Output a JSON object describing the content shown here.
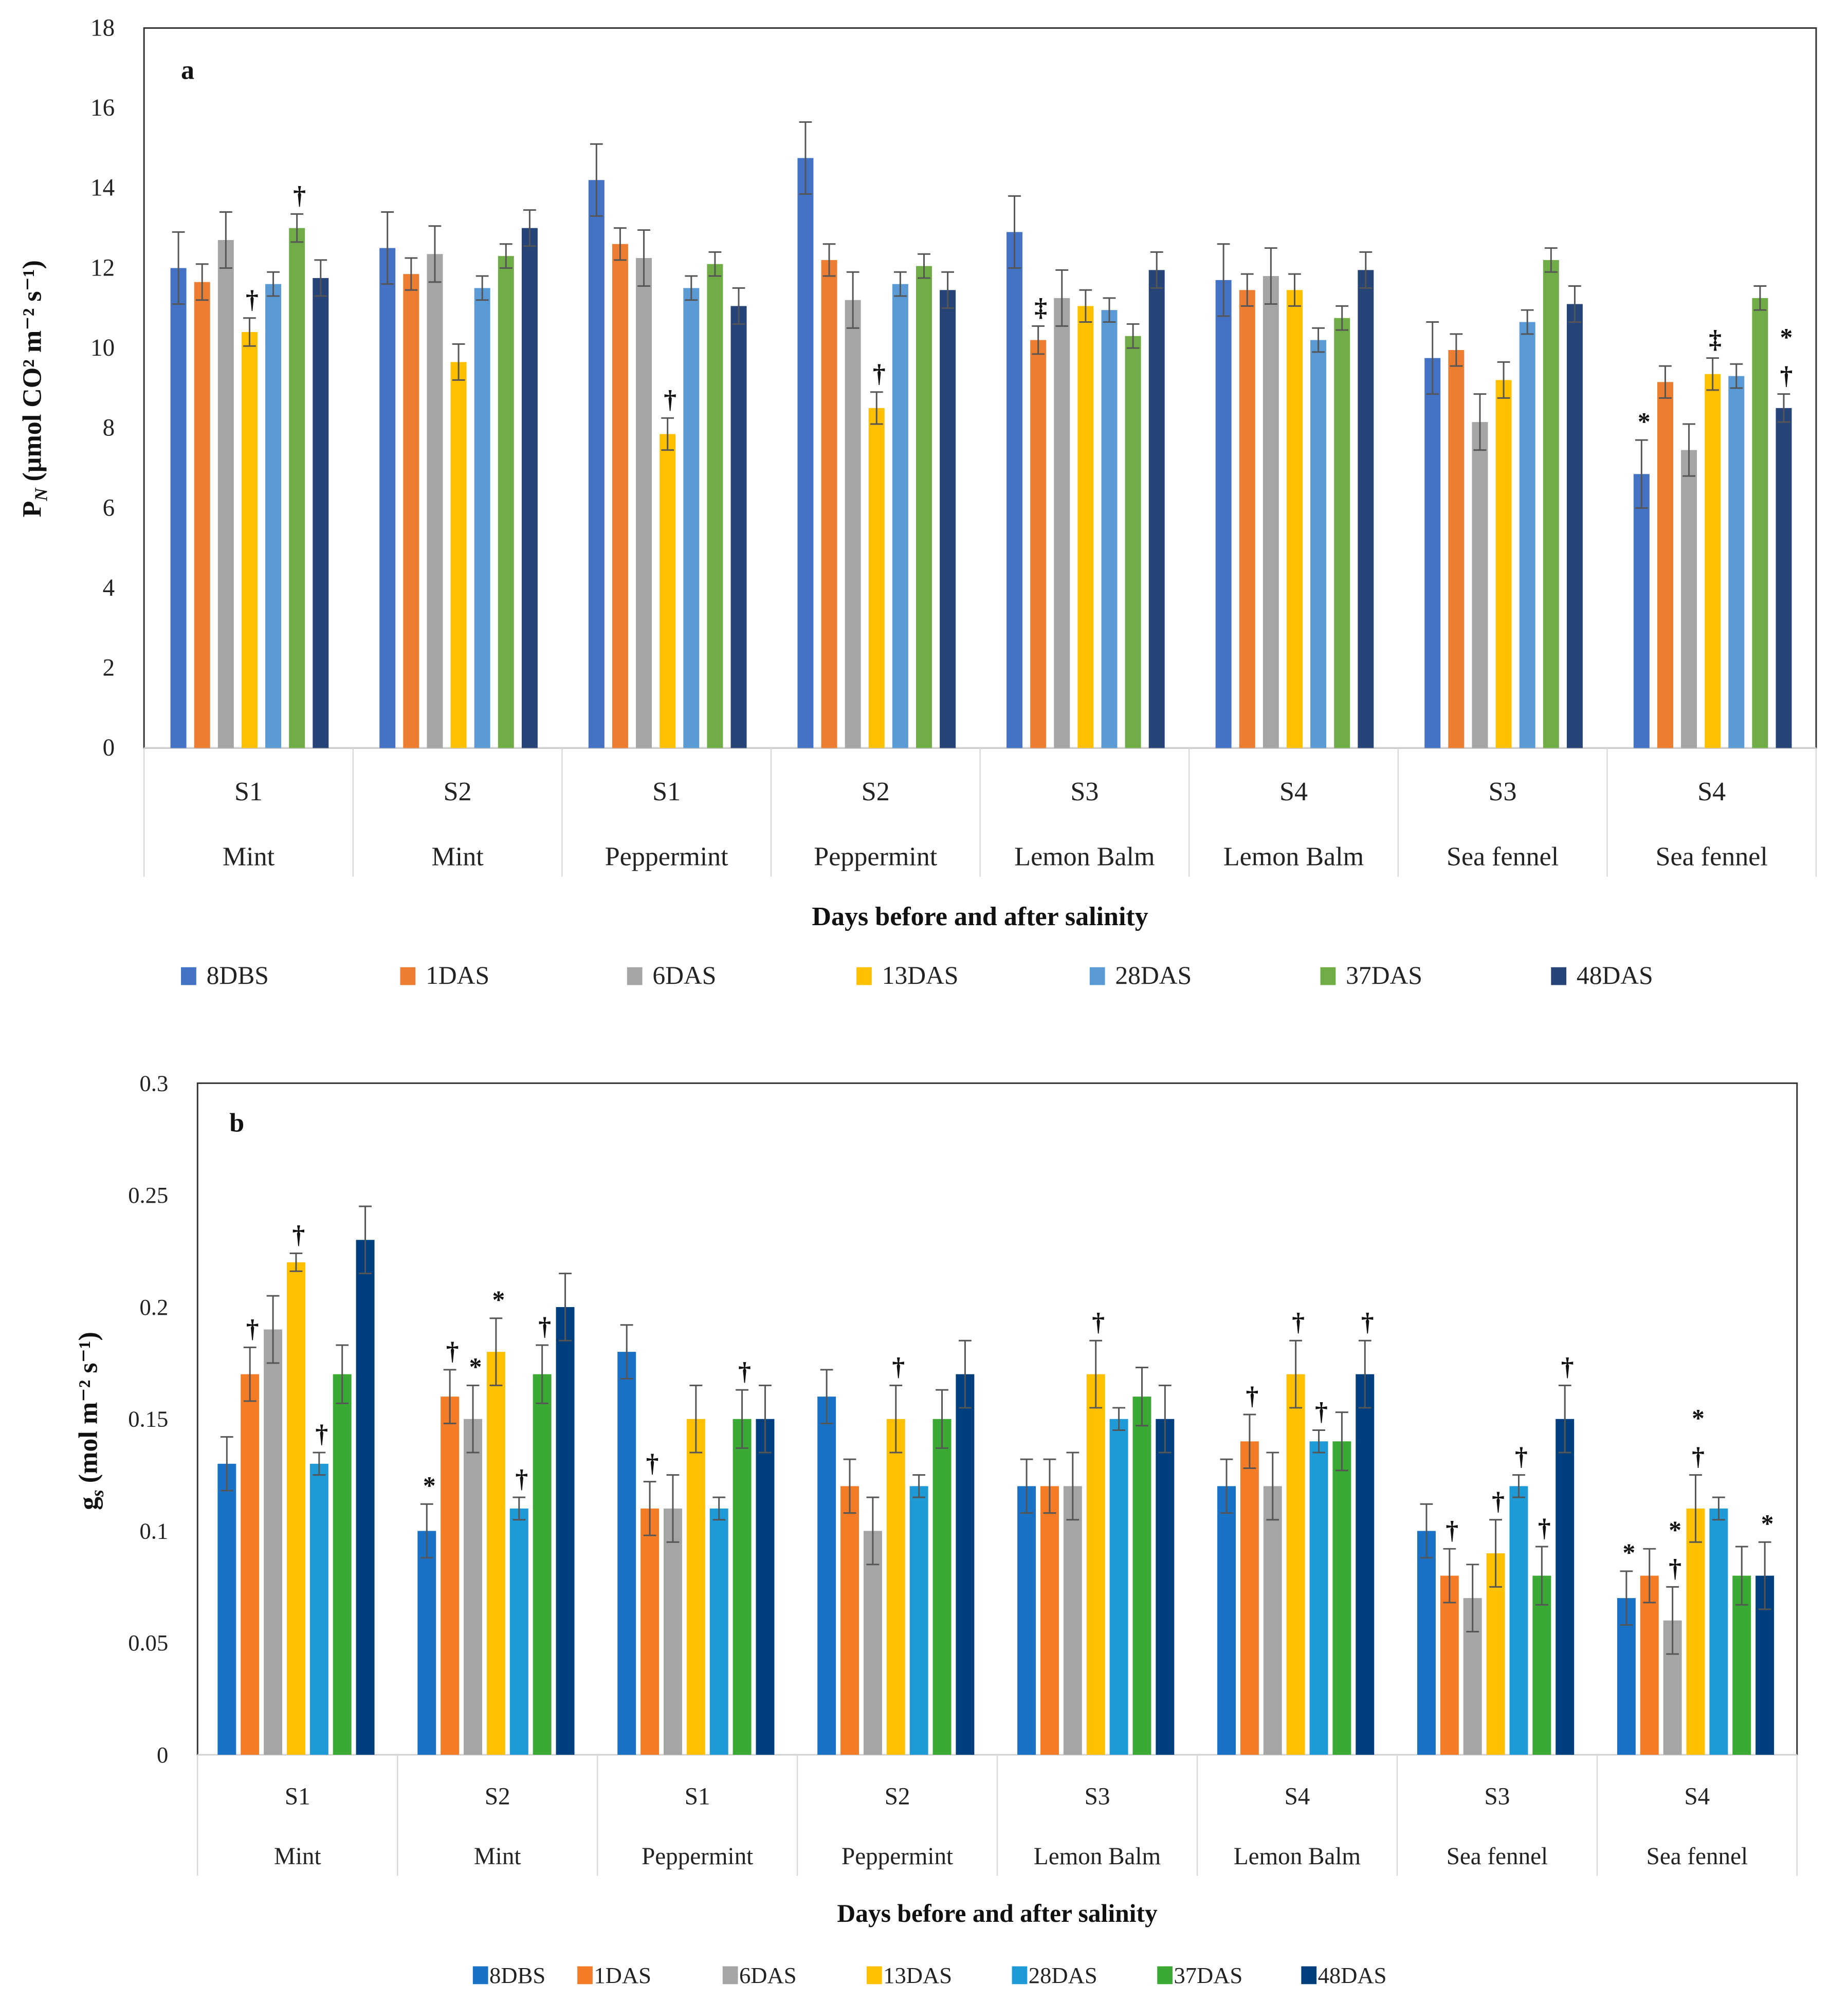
{
  "chart_data": [
    {
      "type": "bar",
      "panel_label": "a",
      "title": "",
      "ylabel_main": "P",
      "ylabel_sub": "N",
      "ylabel_rest": " (μmol CO² m⁻² s⁻¹)",
      "xlabel": "Days before and after salinity",
      "ylim": [
        0,
        18
      ],
      "yticks": [
        0,
        2,
        4,
        6,
        8,
        10,
        12,
        14,
        16,
        18
      ],
      "ytick_labels": [
        "0",
        "2",
        "4",
        "6",
        "8",
        "10",
        "12",
        "14",
        "16",
        "18"
      ],
      "categories": [
        {
          "sub": "S1",
          "plant": "Mint"
        },
        {
          "sub": "S2",
          "plant": "Mint"
        },
        {
          "sub": "S1",
          "plant": "Peppermint"
        },
        {
          "sub": "S2",
          "plant": "Peppermint"
        },
        {
          "sub": "S3",
          "plant": "Lemon Balm"
        },
        {
          "sub": "S4",
          "plant": "Lemon Balm"
        },
        {
          "sub": "S3",
          "plant": "Sea fennel"
        },
        {
          "sub": "S4",
          "plant": "Sea fennel"
        }
      ],
      "legend_position": "bottom",
      "series": [
        {
          "name": "8DBS",
          "color": "#4472C4",
          "values": [
            12.0,
            12.5,
            14.2,
            14.75,
            12.9,
            11.7,
            9.75,
            6.85
          ],
          "errors": [
            0.9,
            0.9,
            0.9,
            0.9,
            0.9,
            0.9,
            0.9,
            0.85
          ]
        },
        {
          "name": "1DAS",
          "color": "#ED7D31",
          "values": [
            11.65,
            11.85,
            12.6,
            12.2,
            10.2,
            11.45,
            9.95,
            9.15
          ],
          "errors": [
            0.45,
            0.4,
            0.4,
            0.4,
            0.35,
            0.4,
            0.4,
            0.4
          ]
        },
        {
          "name": "6DAS",
          "color": "#A5A5A5",
          "values": [
            12.7,
            12.35,
            12.25,
            11.2,
            11.25,
            11.8,
            8.15,
            7.45
          ],
          "errors": [
            0.7,
            0.7,
            0.7,
            0.7,
            0.7,
            0.7,
            0.7,
            0.65
          ]
        },
        {
          "name": "13DAS",
          "color": "#FFC000",
          "values": [
            10.4,
            9.65,
            7.85,
            8.5,
            11.05,
            11.45,
            9.2,
            9.35
          ],
          "errors": [
            0.35,
            0.45,
            0.4,
            0.4,
            0.4,
            0.4,
            0.45,
            0.4
          ]
        },
        {
          "name": "28DAS",
          "color": "#5B9BD5",
          "values": [
            11.6,
            11.5,
            11.5,
            11.6,
            10.95,
            10.2,
            10.65,
            9.3
          ],
          "errors": [
            0.3,
            0.3,
            0.3,
            0.3,
            0.3,
            0.3,
            0.3,
            0.3
          ]
        },
        {
          "name": "37DAS",
          "color": "#70AD47",
          "values": [
            13.0,
            12.3,
            12.1,
            12.05,
            10.3,
            10.75,
            12.2,
            11.25
          ],
          "errors": [
            0.35,
            0.3,
            0.3,
            0.3,
            0.3,
            0.3,
            0.3,
            0.3
          ]
        },
        {
          "name": "48DAS",
          "color": "#264478",
          "values": [
            11.75,
            13.0,
            11.05,
            11.45,
            11.95,
            11.95,
            11.1,
            8.5
          ],
          "errors": [
            0.45,
            0.45,
            0.45,
            0.45,
            0.45,
            0.45,
            0.45,
            0.35
          ]
        }
      ],
      "annotations": [
        {
          "group": 0,
          "series": 3,
          "marks": "†"
        },
        {
          "group": 0,
          "series": 5,
          "marks": "†"
        },
        {
          "group": 2,
          "series": 3,
          "marks": "†"
        },
        {
          "group": 3,
          "series": 3,
          "marks": "†"
        },
        {
          "group": 4,
          "series": 1,
          "marks": "‡"
        },
        {
          "group": 7,
          "series": 0,
          "marks": "*"
        },
        {
          "group": 7,
          "series": 3,
          "marks": "‡"
        },
        {
          "group": 7,
          "series": 6,
          "marks": "*†"
        }
      ]
    },
    {
      "type": "bar",
      "panel_label": "b",
      "title": "",
      "ylabel_main": "g",
      "ylabel_sub": "s",
      "ylabel_rest": " (mol m⁻² s⁻¹)",
      "xlabel": "Days before and after salinity",
      "ylim": [
        0,
        0.3
      ],
      "yticks": [
        0,
        0.05,
        0.1,
        0.15,
        0.2,
        0.25,
        0.3
      ],
      "ytick_labels": [
        "0",
        "0.05",
        "0.1",
        "0.15",
        "0.2",
        "0.25",
        "0.3"
      ],
      "categories": [
        {
          "sub": "S1",
          "plant": "Mint"
        },
        {
          "sub": "S2",
          "plant": "Mint"
        },
        {
          "sub": "S1",
          "plant": "Peppermint"
        },
        {
          "sub": "S2",
          "plant": "Peppermint"
        },
        {
          "sub": "S3",
          "plant": "Lemon Balm"
        },
        {
          "sub": "S4",
          "plant": "Lemon Balm"
        },
        {
          "sub": "S3",
          "plant": "Sea fennel"
        },
        {
          "sub": "S4",
          "plant": "Sea fennel"
        }
      ],
      "legend_position": "bottom",
      "series": [
        {
          "name": "8DBS",
          "color": "#1A72C7",
          "values": [
            0.13,
            0.1,
            0.18,
            0.16,
            0.12,
            0.12,
            0.1,
            0.07
          ],
          "errors": [
            0.012,
            0.012,
            0.012,
            0.012,
            0.012,
            0.012,
            0.012,
            0.012
          ]
        },
        {
          "name": "1DAS",
          "color": "#F47C27",
          "values": [
            0.17,
            0.16,
            0.11,
            0.12,
            0.12,
            0.14,
            0.08,
            0.08
          ],
          "errors": [
            0.012,
            0.012,
            0.012,
            0.012,
            0.012,
            0.012,
            0.012,
            0.012
          ]
        },
        {
          "name": "6DAS",
          "color": "#A5A5A5",
          "values": [
            0.19,
            0.15,
            0.11,
            0.1,
            0.12,
            0.12,
            0.07,
            0.06
          ],
          "errors": [
            0.015,
            0.015,
            0.015,
            0.015,
            0.015,
            0.015,
            0.015,
            0.015
          ]
        },
        {
          "name": "13DAS",
          "color": "#FFC000",
          "values": [
            0.22,
            0.18,
            0.15,
            0.15,
            0.17,
            0.17,
            0.09,
            0.11
          ],
          "errors": [
            0.004,
            0.015,
            0.015,
            0.015,
            0.015,
            0.015,
            0.015,
            0.015
          ]
        },
        {
          "name": "28DAS",
          "color": "#1E9AD6",
          "values": [
            0.13,
            0.11,
            0.11,
            0.12,
            0.15,
            0.14,
            0.12,
            0.11
          ],
          "errors": [
            0.005,
            0.005,
            0.005,
            0.005,
            0.005,
            0.005,
            0.005,
            0.005
          ]
        },
        {
          "name": "37DAS",
          "color": "#3BAA35",
          "values": [
            0.17,
            0.17,
            0.15,
            0.15,
            0.16,
            0.14,
            0.08,
            0.08
          ],
          "errors": [
            0.013,
            0.013,
            0.013,
            0.013,
            0.013,
            0.013,
            0.013,
            0.013
          ]
        },
        {
          "name": "48DAS",
          "color": "#003F7D",
          "values": [
            0.23,
            0.2,
            0.15,
            0.17,
            0.15,
            0.17,
            0.15,
            0.08
          ],
          "errors": [
            0.015,
            0.015,
            0.015,
            0.015,
            0.015,
            0.015,
            0.015,
            0.015
          ]
        }
      ],
      "annotations": [
        {
          "group": 0,
          "series": 1,
          "marks": "†"
        },
        {
          "group": 0,
          "series": 3,
          "marks": "†"
        },
        {
          "group": 0,
          "series": 4,
          "marks": "†"
        },
        {
          "group": 1,
          "series": 0,
          "marks": "*"
        },
        {
          "group": 1,
          "series": 1,
          "marks": "†"
        },
        {
          "group": 1,
          "series": 2,
          "marks": "*"
        },
        {
          "group": 1,
          "series": 3,
          "marks": "*"
        },
        {
          "group": 1,
          "series": 4,
          "marks": "†"
        },
        {
          "group": 1,
          "series": 5,
          "marks": "†"
        },
        {
          "group": 2,
          "series": 1,
          "marks": "†"
        },
        {
          "group": 2,
          "series": 5,
          "marks": "†"
        },
        {
          "group": 3,
          "series": 3,
          "marks": "†"
        },
        {
          "group": 4,
          "series": 3,
          "marks": "†"
        },
        {
          "group": 5,
          "series": 1,
          "marks": "†"
        },
        {
          "group": 5,
          "series": 3,
          "marks": "†"
        },
        {
          "group": 5,
          "series": 4,
          "marks": "†"
        },
        {
          "group": 5,
          "series": 6,
          "marks": "†"
        },
        {
          "group": 6,
          "series": 1,
          "marks": "†"
        },
        {
          "group": 6,
          "series": 3,
          "marks": "†"
        },
        {
          "group": 6,
          "series": 4,
          "marks": "†"
        },
        {
          "group": 6,
          "series": 5,
          "marks": "†"
        },
        {
          "group": 6,
          "series": 6,
          "marks": "†"
        },
        {
          "group": 7,
          "series": 0,
          "marks": "*"
        },
        {
          "group": 7,
          "series": 2,
          "marks": "*†"
        },
        {
          "group": 7,
          "series": 3,
          "marks": "*†"
        },
        {
          "group": 7,
          "series": 6,
          "marks": "*"
        }
      ]
    }
  ]
}
